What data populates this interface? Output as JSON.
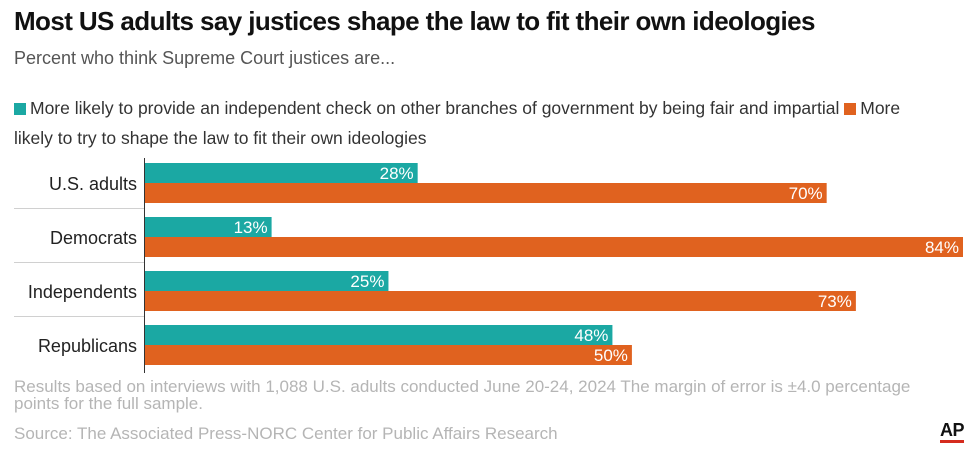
{
  "title": "Most US adults say justices shape the law to fit their own ideologies",
  "subtitle": "Percent who think Supreme Court justices are...",
  "legend": {
    "independent": "More likely to provide an independent check on other branches of government by being fair and impartial",
    "ideology": "More likely to try to shape the law to fit their own ideologies"
  },
  "colors": {
    "independent": "#1ba8a3",
    "ideology": "#e0621f"
  },
  "footer": {
    "note": "Results based on interviews with 1,088 U.S. adults conducted June 20-24, 2024 The margin of error is ±4.0 percentage points for the full sample.",
    "source": "Source: The Associated Press-NORC Center for Public Affairs Research",
    "logo": "AP"
  },
  "chart_data": {
    "type": "bar",
    "orientation": "horizontal",
    "categories": [
      "U.S. adults",
      "Democrats",
      "Independents",
      "Republicans"
    ],
    "series": [
      {
        "name": "More likely to provide an independent check on other branches of government by being fair and impartial",
        "values": [
          28,
          13,
          25,
          48
        ],
        "labels": [
          "28%",
          "13%",
          "25%",
          "48%"
        ]
      },
      {
        "name": "More likely to try to shape the law to fit their own ideologies",
        "values": [
          70,
          84,
          73,
          50
        ],
        "labels": [
          "70%",
          "84%",
          "73%",
          "50%"
        ]
      }
    ],
    "xlim": [
      0,
      84
    ],
    "grid": false,
    "legend_position": "top"
  }
}
